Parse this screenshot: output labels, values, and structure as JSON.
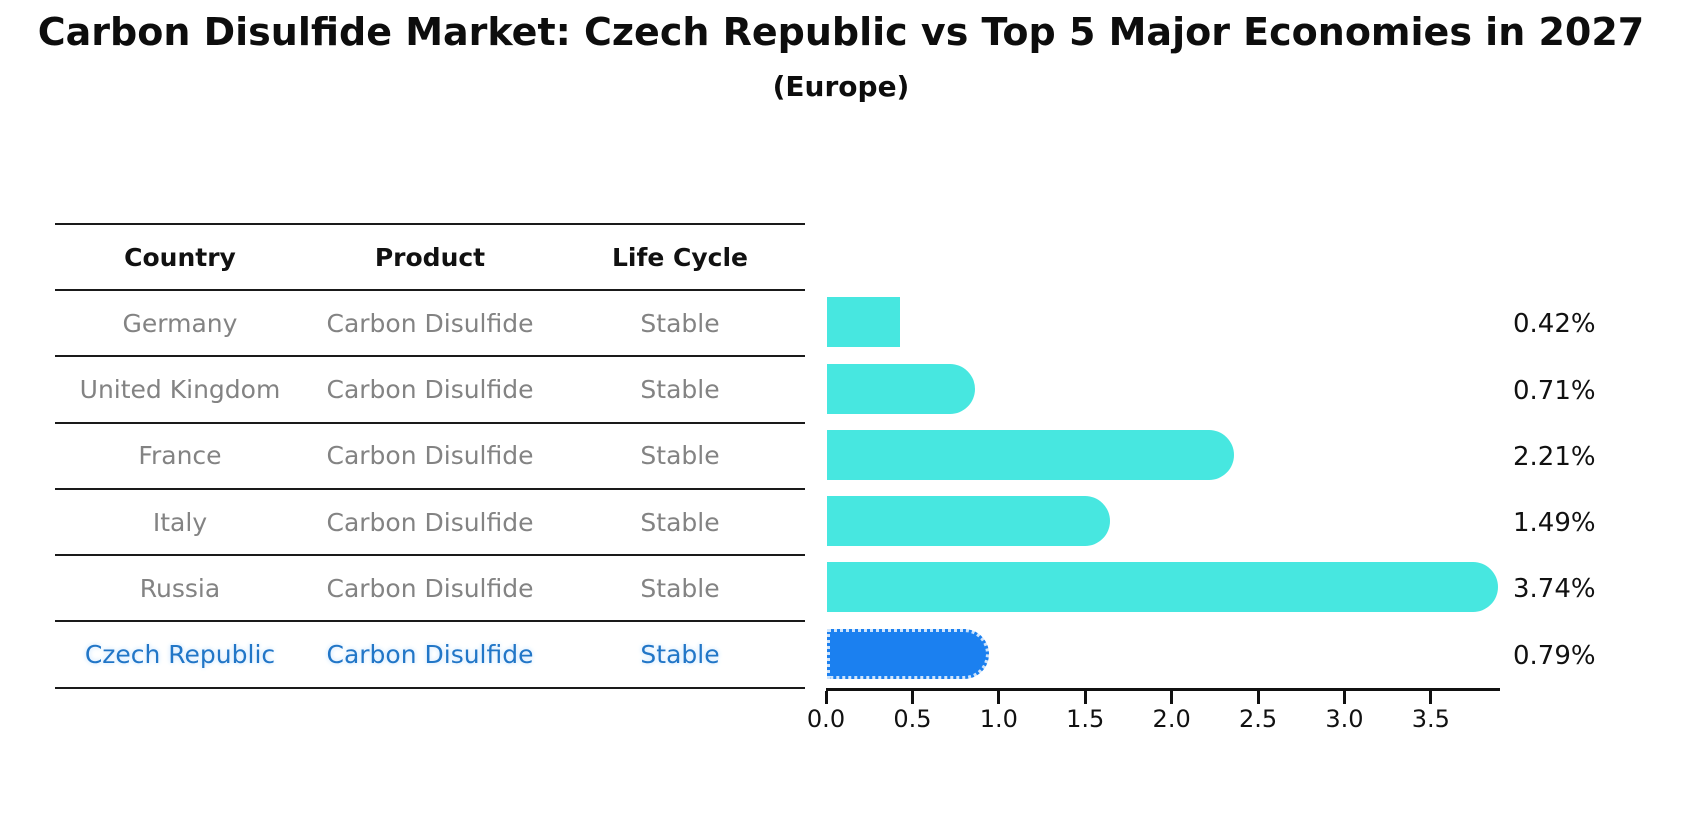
{
  "title": "Carbon Disulfide Market: Czech Republic vs Top 5 Major Economies in 2027",
  "subtitle": "(Europe)",
  "table": {
    "headers": [
      "Country",
      "Product",
      "Life Cycle"
    ],
    "rows": [
      {
        "country": "Germany",
        "product": "Carbon Disulfide",
        "life_cycle": "Stable",
        "highlighted": false
      },
      {
        "country": "United Kingdom",
        "product": "Carbon Disulfide",
        "life_cycle": "Stable",
        "highlighted": false
      },
      {
        "country": "France",
        "product": "Carbon Disulfide",
        "life_cycle": "Stable",
        "highlighted": false
      },
      {
        "country": "Italy",
        "product": "Carbon Disulfide",
        "life_cycle": "Stable",
        "highlighted": false
      },
      {
        "country": "Russia",
        "product": "Carbon Disulfide",
        "life_cycle": "Stable",
        "highlighted": false
      },
      {
        "country": "Czech Republic",
        "product": "Carbon Disulfide",
        "life_cycle": "Stable",
        "highlighted": true
      }
    ]
  },
  "chart_data": {
    "type": "bar",
    "orientation": "horizontal",
    "title": "Carbon Disulfide Market: Czech Republic vs Top 5 Major Economies in 2027",
    "subtitle": "(Europe)",
    "categories": [
      "Germany",
      "United Kingdom",
      "France",
      "Italy",
      "Russia",
      "Czech Republic"
    ],
    "values": [
      0.42,
      0.71,
      2.21,
      1.49,
      3.74,
      0.79
    ],
    "labels": [
      "0.42%",
      "0.71%",
      "2.21%",
      "1.49%",
      "3.74%",
      "0.79%"
    ],
    "x_ticks": [
      0.0,
      0.5,
      1.0,
      1.5,
      2.0,
      2.5,
      3.0,
      3.5
    ],
    "x_tick_labels": [
      "0.0",
      "0.5",
      "1.0",
      "1.5",
      "2.0",
      "2.5",
      "3.0",
      "3.5"
    ],
    "xlim": [
      0,
      3.9
    ],
    "grid": false,
    "legend": "none",
    "highlight_index": 5,
    "bar_color": "#47E7E0",
    "highlight_bar_color": "#1B80F0",
    "highlight_border_color": "#cfe4fb",
    "highlight_text_color": "#2176C7"
  },
  "colors": {
    "background": "#ffffff",
    "text": "#111111",
    "muted_text": "#838383",
    "table_line": "#1a1a1a"
  }
}
